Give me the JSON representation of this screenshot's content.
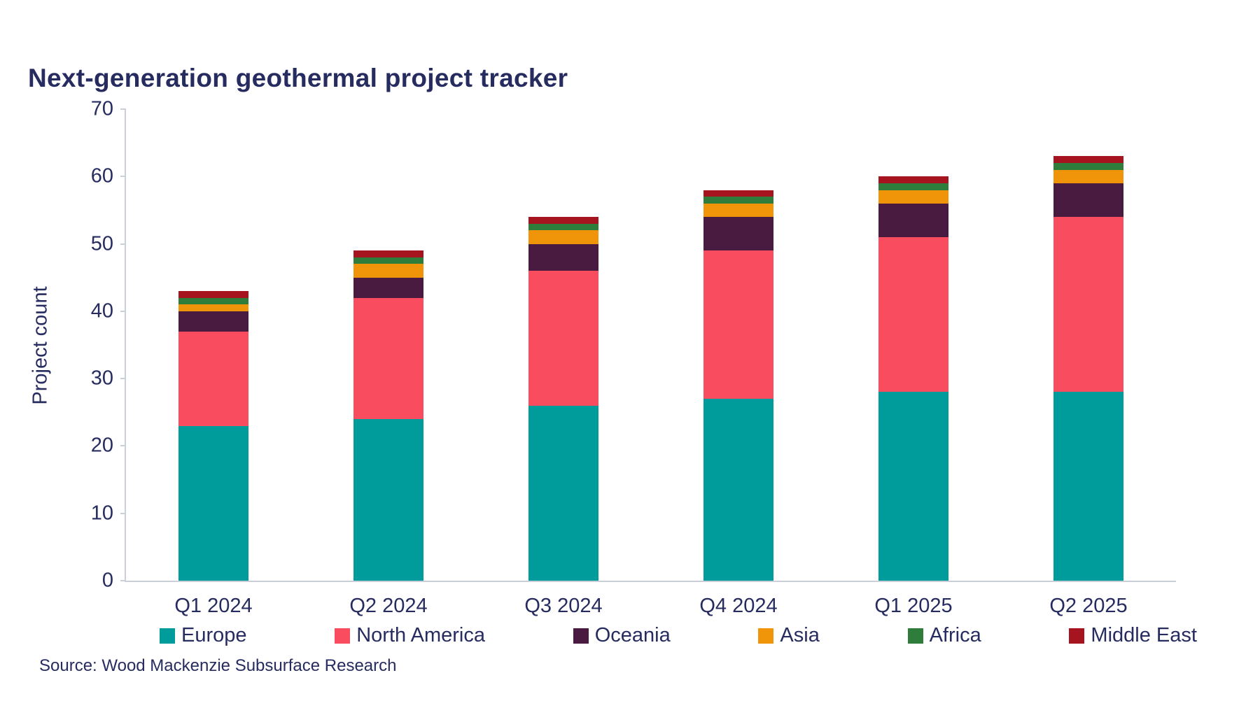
{
  "title": "Next-generation geothermal project tracker",
  "source": "Source: Wood Mackenzie Subsurface Research",
  "colors": {
    "text": "#272C60",
    "axis": "#CBD0D8",
    "background": "#FFFFFF"
  },
  "chart_data": {
    "type": "bar",
    "stacked": true,
    "title": "Next-generation geothermal project tracker",
    "xlabel": "",
    "ylabel": "Project count",
    "ylim": [
      0,
      70
    ],
    "yticks": [
      0,
      10,
      20,
      30,
      40,
      50,
      60,
      70
    ],
    "grid": false,
    "legend_position": "bottom",
    "categories": [
      "Q1 2024",
      "Q2 2024",
      "Q3 2024",
      "Q4 2024",
      "Q1 2025",
      "Q2 2025"
    ],
    "series": [
      {
        "name": "Europe",
        "color": "#009C9B",
        "values": [
          23,
          24,
          26,
          27,
          28,
          28
        ]
      },
      {
        "name": "North America",
        "color": "#F94C5F",
        "values": [
          14,
          18,
          20,
          22,
          23,
          26
        ]
      },
      {
        "name": "Oceania",
        "color": "#4A1B41",
        "values": [
          3,
          3,
          4,
          5,
          5,
          5
        ]
      },
      {
        "name": "Asia",
        "color": "#F0940A",
        "values": [
          1,
          2,
          2,
          2,
          2,
          2
        ]
      },
      {
        "name": "Africa",
        "color": "#2E7D3A",
        "values": [
          1,
          1,
          1,
          1,
          1,
          1
        ]
      },
      {
        "name": "Middle East",
        "color": "#A6141F",
        "values": [
          1,
          1,
          1,
          1,
          1,
          1
        ]
      }
    ],
    "totals": [
      43,
      49,
      54,
      58,
      60,
      63
    ]
  }
}
